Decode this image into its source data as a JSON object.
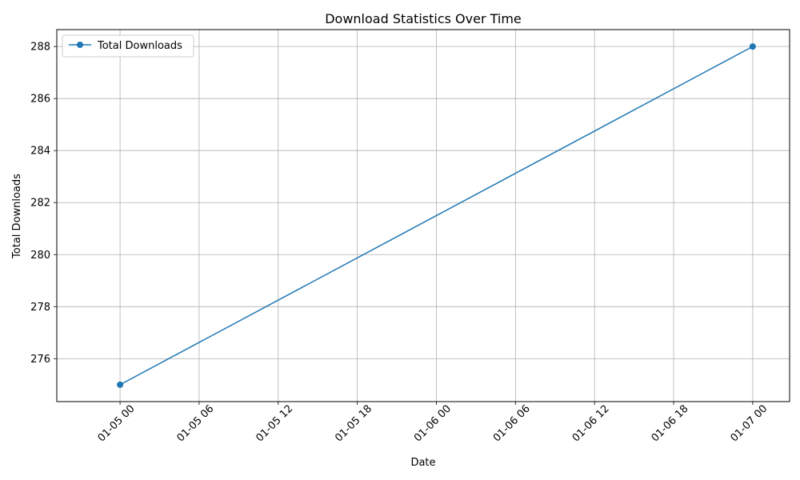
{
  "chart_data": {
    "type": "line",
    "title": "Download Statistics Over Time",
    "xlabel": "Date",
    "ylabel": "Total Downloads",
    "x_ticks": [
      "01-05 00",
      "01-05 06",
      "01-05 12",
      "01-05 18",
      "01-06 00",
      "01-06 06",
      "01-06 12",
      "01-06 18",
      "01-07 00"
    ],
    "x_tick_hours": [
      0,
      6,
      12,
      18,
      24,
      30,
      36,
      42,
      48
    ],
    "y_ticks": [
      276,
      278,
      280,
      282,
      284,
      286,
      288
    ],
    "xlim_hours": [
      -4.8,
      50.8
    ],
    "ylim": [
      274.35,
      288.65
    ],
    "grid": true,
    "legend_position": "top-left",
    "series": [
      {
        "name": "Total Downloads",
        "color": "#1f77b4",
        "marker": "circle",
        "points": [
          {
            "date": "01-05 00",
            "hour": 0,
            "value": 275
          },
          {
            "date": "01-07 00",
            "hour": 48,
            "value": 288
          }
        ]
      }
    ]
  }
}
